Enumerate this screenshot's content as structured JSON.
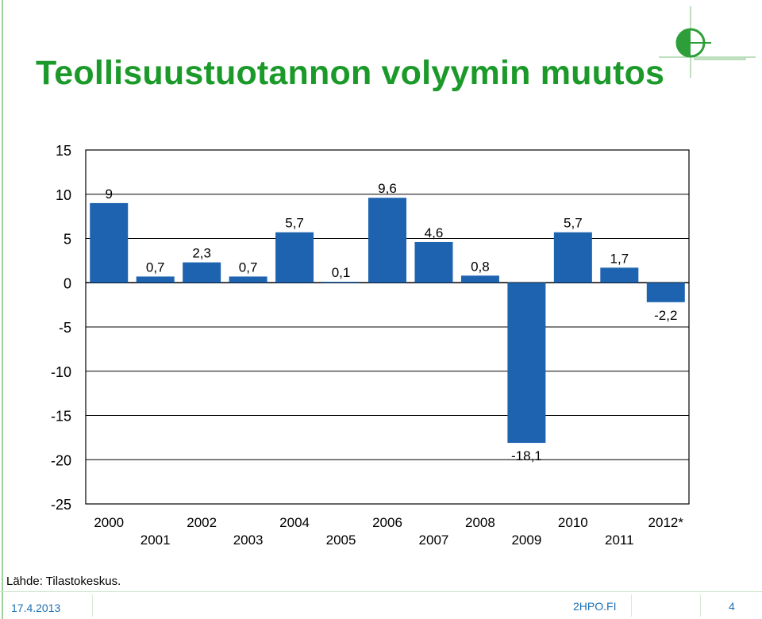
{
  "slide": {
    "title": "Teollisuustuotannon volyymin muutos",
    "source": "Lähde: Tilastokeskus.",
    "footer": {
      "date": "17.4.2013",
      "site": "2HPO.FI",
      "page": "4"
    }
  },
  "colors": {
    "title": "#1b9a2a",
    "bar": "#1e63b0",
    "grid": "#000000",
    "footer_text": "#1b6fb5"
  },
  "logo": {
    "icon": "hpo-logo-icon"
  },
  "chart_data": {
    "type": "bar",
    "categories": [
      "2000",
      "2001",
      "2002",
      "2003",
      "2004",
      "2005",
      "2006",
      "2007",
      "2008",
      "2009",
      "2010",
      "2011",
      "2012*"
    ],
    "values": [
      9,
      0.7,
      2.3,
      0.7,
      5.7,
      0.1,
      9.6,
      4.6,
      0.8,
      -18.1,
      5.7,
      1.7,
      -2.2
    ],
    "data_labels": [
      "9",
      "0,7",
      "2,3",
      "0,7",
      "5,7",
      "0,1",
      "9,6",
      "4,6",
      "0,8",
      "-18,1",
      "5,7",
      "1,7",
      "-2,2"
    ],
    "y_ticks": [
      15,
      10,
      5,
      0,
      -5,
      -10,
      -15,
      -20,
      -25
    ],
    "y_tick_labels": [
      "15",
      "10",
      "5",
      "0",
      "-5",
      "-10",
      "-15",
      "-20",
      "-25"
    ],
    "ylim": [
      -25,
      15
    ],
    "grid": true,
    "title": "",
    "xlabel": "",
    "ylabel": ""
  }
}
